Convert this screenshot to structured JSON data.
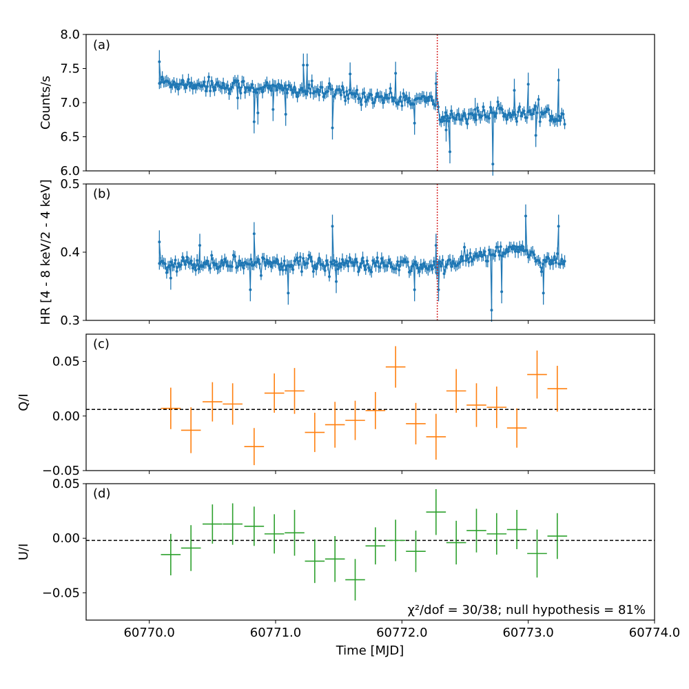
{
  "chart_data": [
    {
      "type": "scatter",
      "panel_label": "(a)",
      "ylabel": "Counts/s",
      "xlim": [
        60769.5,
        60774.0
      ],
      "ylim": [
        6.0,
        8.0
      ],
      "yticks": [
        "6.0",
        "6.5",
        "7.0",
        "7.5",
        "8.0"
      ],
      "ytick_values": [
        6.0,
        6.5,
        7.0,
        7.5,
        8.0
      ],
      "color": "#1f77b4",
      "vline_x": 60772.28,
      "vline_color": "#d62728",
      "trend": [
        [
          60770.08,
          7.3
        ],
        [
          60770.6,
          7.25
        ],
        [
          60771.3,
          7.17
        ],
        [
          60772.0,
          7.05
        ],
        [
          60772.27,
          7.02
        ],
        [
          60772.3,
          6.78
        ],
        [
          60772.8,
          6.85
        ],
        [
          60773.3,
          6.82
        ]
      ],
      "outliers": [
        [
          60770.08,
          7.6
        ],
        [
          60770.7,
          7.07
        ],
        [
          60770.83,
          6.72
        ],
        [
          60770.86,
          6.85
        ],
        [
          60770.98,
          6.9
        ],
        [
          60771.08,
          6.83
        ],
        [
          60771.22,
          7.55
        ],
        [
          60771.25,
          7.55
        ],
        [
          60771.45,
          6.63
        ],
        [
          60771.59,
          7.42
        ],
        [
          60771.95,
          7.43
        ],
        [
          60772.1,
          6.7
        ],
        [
          60772.27,
          7.28
        ],
        [
          60772.35,
          6.6
        ],
        [
          60772.38,
          6.28
        ],
        [
          60772.58,
          6.9
        ],
        [
          60772.72,
          6.1
        ],
        [
          60772.89,
          7.18
        ],
        [
          60773.0,
          7.27
        ],
        [
          60773.06,
          6.52
        ],
        [
          60773.24,
          7.33
        ]
      ]
    },
    {
      "type": "scatter",
      "panel_label": "(b)",
      "ylabel": "HR [4 - 8 keV/2 - 4 keV]",
      "xlim": [
        60769.5,
        60774.0
      ],
      "ylim": [
        0.3,
        0.5
      ],
      "yticks": [
        "0.3",
        "0.4",
        "0.5"
      ],
      "ytick_values": [
        0.3,
        0.4,
        0.5
      ],
      "color": "#1f77b4",
      "vline_x": 60772.28,
      "vline_color": "#d62728",
      "trend": [
        [
          60770.08,
          0.383
        ],
        [
          60771.0,
          0.385
        ],
        [
          60772.0,
          0.38
        ],
        [
          60772.3,
          0.378
        ],
        [
          60772.55,
          0.392
        ],
        [
          60772.8,
          0.4
        ],
        [
          60772.98,
          0.405
        ],
        [
          60773.1,
          0.382
        ],
        [
          60773.3,
          0.388
        ]
      ],
      "outliers": [
        [
          60770.08,
          0.415
        ],
        [
          60770.17,
          0.362
        ],
        [
          60770.4,
          0.41
        ],
        [
          60770.8,
          0.345
        ],
        [
          60770.83,
          0.427
        ],
        [
          60771.1,
          0.34
        ],
        [
          60771.45,
          0.438
        ],
        [
          60771.48,
          0.357
        ],
        [
          60772.1,
          0.345
        ],
        [
          60772.27,
          0.41
        ],
        [
          60772.29,
          0.345
        ],
        [
          60772.71,
          0.315
        ],
        [
          60772.79,
          0.342
        ],
        [
          60772.98,
          0.453
        ],
        [
          60773.12,
          0.34
        ],
        [
          60773.24,
          0.438
        ]
      ]
    },
    {
      "type": "errorbar",
      "panel_label": "(c)",
      "ylabel": "Q/I",
      "xlim": [
        60769.5,
        60774.0
      ],
      "ylim": [
        -0.05,
        0.075
      ],
      "yticks": [
        "−0.05",
        "0.00",
        "0.05"
      ],
      "ytick_values": [
        -0.05,
        0.0,
        0.05
      ],
      "color": "#ff7f0e",
      "bin_halfwidth": 0.078,
      "x": [
        60770.17,
        60770.33,
        60770.5,
        60770.66,
        60770.83,
        60770.99,
        60771.15,
        60771.31,
        60771.47,
        60771.63,
        60771.79,
        60771.95,
        60772.11,
        60772.27,
        60772.43,
        60772.59,
        60772.75,
        60772.91,
        60773.07,
        60773.23
      ],
      "y": [
        0.007,
        -0.013,
        0.013,
        0.011,
        -0.028,
        0.021,
        0.023,
        -0.015,
        -0.008,
        -0.004,
        0.005,
        0.045,
        -0.007,
        -0.019,
        0.023,
        0.01,
        0.008,
        -0.011,
        0.038,
        0.025
      ],
      "yerr": [
        0.019,
        0.021,
        0.018,
        0.019,
        0.017,
        0.018,
        0.021,
        0.018,
        0.021,
        0.018,
        0.017,
        0.019,
        0.019,
        0.021,
        0.02,
        0.02,
        0.019,
        0.018,
        0.022,
        0.021
      ],
      "hline_y": 0.006
    },
    {
      "type": "errorbar",
      "panel_label": "(d)",
      "ylabel": "U/I",
      "xlabel": "Time [MJD]",
      "xlim": [
        60769.5,
        60774.0
      ],
      "ylim": [
        -0.075,
        0.05
      ],
      "yticks": [
        "−0.05",
        "0.00",
        "0.05"
      ],
      "ytick_values": [
        -0.05,
        0.0,
        0.05
      ],
      "xticks": [
        "60770.0",
        "60771.0",
        "60772.0",
        "60773.0",
        "60774.0"
      ],
      "xtick_values": [
        60770.0,
        60771.0,
        60772.0,
        60773.0,
        60774.0
      ],
      "color": "#2ca02c",
      "bin_halfwidth": 0.078,
      "x": [
        60770.17,
        60770.33,
        60770.5,
        60770.66,
        60770.83,
        60770.99,
        60771.15,
        60771.31,
        60771.47,
        60771.63,
        60771.79,
        60771.95,
        60772.11,
        60772.27,
        60772.43,
        60772.59,
        60772.75,
        60772.91,
        60773.07,
        60773.23
      ],
      "y": [
        -0.015,
        -0.009,
        0.013,
        0.013,
        0.011,
        0.004,
        0.005,
        -0.021,
        -0.019,
        -0.038,
        -0.007,
        -0.002,
        -0.012,
        0.024,
        -0.004,
        0.007,
        0.004,
        0.008,
        -0.014,
        0.002
      ],
      "yerr": [
        0.019,
        0.021,
        0.018,
        0.019,
        0.018,
        0.018,
        0.021,
        0.02,
        0.021,
        0.019,
        0.017,
        0.019,
        0.019,
        0.021,
        0.02,
        0.02,
        0.019,
        0.018,
        0.022,
        0.021
      ],
      "hline_y": -0.002,
      "annotation": "χ²/dof = 30/38; null hypothesis = 81%"
    }
  ]
}
